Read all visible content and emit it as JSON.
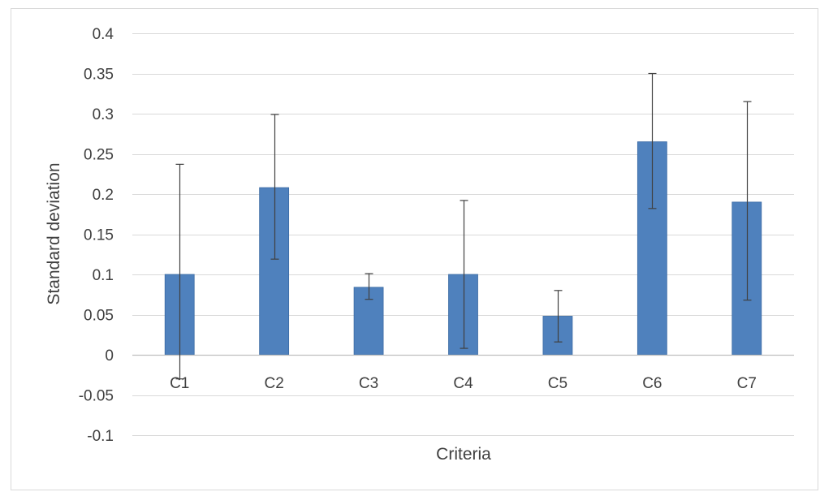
{
  "chart_data": {
    "type": "bar",
    "title": "",
    "xlabel": "Criteria",
    "ylabel": "Standard deviation",
    "categories": [
      "C1",
      "C2",
      "C3",
      "C4",
      "C5",
      "C6",
      "C7"
    ],
    "values": [
      0.1,
      0.208,
      0.084,
      0.1,
      0.048,
      0.265,
      0.19
    ],
    "error_bars": {
      "upper": [
        0.237,
        0.299,
        0.101,
        0.192,
        0.08,
        0.35,
        0.315
      ],
      "lower": [
        -0.03,
        0.119,
        0.069,
        0.008,
        0.016,
        0.182,
        0.068
      ]
    },
    "ylim": [
      -0.1,
      0.4
    ],
    "yticks": [
      "-0.1",
      "-0.05",
      "0",
      "0.05",
      "0.1",
      "0.15",
      "0.2",
      "0.25",
      "0.3",
      "0.35",
      "0.4"
    ],
    "grid": true,
    "legend": "none",
    "colors": {
      "bar": "#4f81bd",
      "bar_edge": "#3a6aa3",
      "grid": "#d9d9d9",
      "axis": "#bfbfbf",
      "error_bar": "#404040",
      "text": "#404040"
    }
  }
}
